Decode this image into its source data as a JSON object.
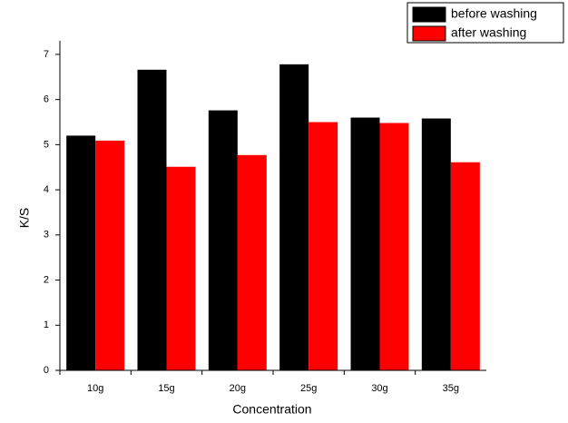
{
  "chart_data": {
    "type": "bar",
    "x_label": "Concentration",
    "y_label": "K/S",
    "categories": [
      "10g",
      "15g",
      "20g",
      "25g",
      "30g",
      "35g"
    ],
    "series": [
      {
        "name": "before washing",
        "color": "#000000",
        "values": [
          5.2,
          6.66,
          5.76,
          6.78,
          5.6,
          5.58
        ]
      },
      {
        "name": "after washing",
        "color": "#ff0000",
        "values": [
          5.09,
          4.51,
          4.77,
          5.5,
          5.48,
          4.61
        ]
      }
    ],
    "ylim": [
      0,
      7.3
    ],
    "yticks": [
      0,
      1,
      2,
      3,
      4,
      5,
      6,
      7
    ],
    "legend": "top-right"
  }
}
